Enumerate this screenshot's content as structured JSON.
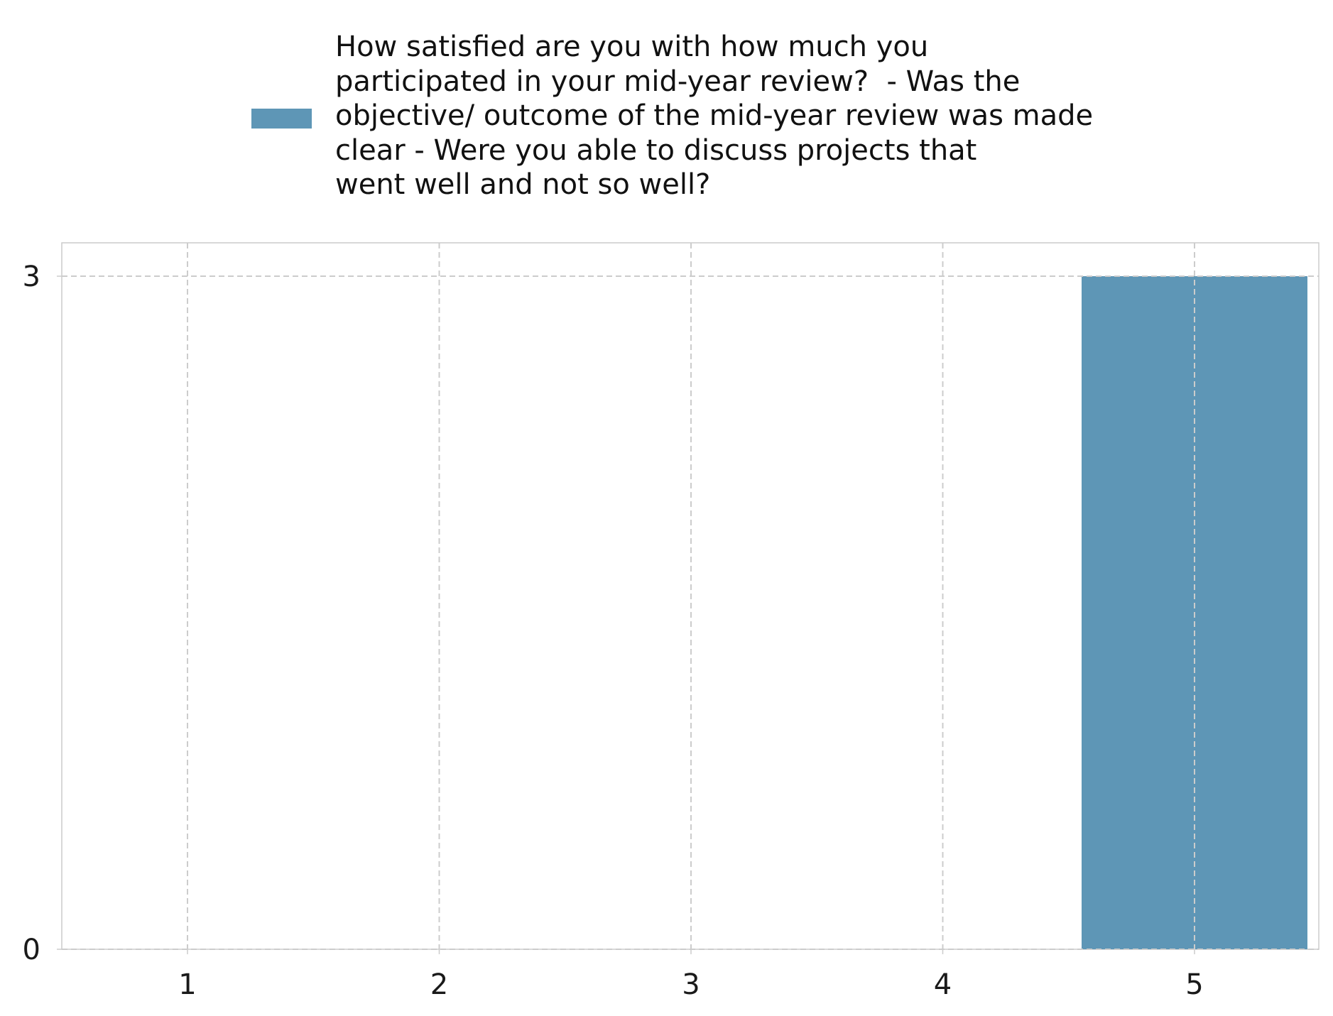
{
  "chart_data": {
    "type": "bar",
    "categories": [
      "1",
      "2",
      "3",
      "4",
      "5"
    ],
    "series": [
      {
        "name": "How satisfied are you with how much you participated in your mid-year review?  - Was the objective/ outcome of the mid-year review was made clear - Were you able to discuss projects that went well and not so well?",
        "values": [
          0,
          0,
          0,
          0,
          3
        ],
        "color": "#5e96b6"
      }
    ],
    "ylim": [
      0,
      3
    ],
    "yticks": [
      "0",
      "3"
    ],
    "grid": true,
    "legend_position": "top-center"
  },
  "legend": {
    "lines": [
      "How satisfied are you with how much you",
      "participated in your mid-year review?  - Was the",
      "objective/ outcome of the mid-year review was made",
      "clear - Were you able to discuss projects that",
      "went well and not so well?"
    ]
  },
  "colors": {
    "bar": "#5e96b6",
    "grid": "#cccccc",
    "frame": "#cccccc"
  }
}
